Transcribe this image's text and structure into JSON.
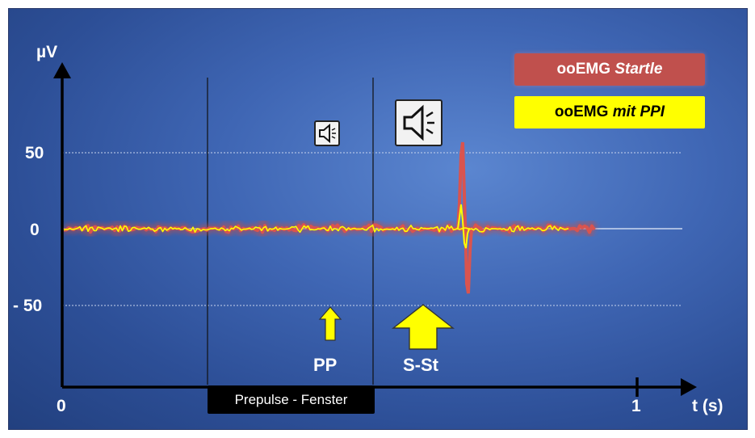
{
  "axes": {
    "y_unit": "µV",
    "x_unit": "t (s)",
    "y_ticks": [
      "50",
      "0",
      "- 50"
    ],
    "x_origin": "0",
    "x_tick_1": "1"
  },
  "legend": {
    "startle": {
      "prefix": "ooEMG",
      "suffix": "Startle",
      "color": "#c0504d"
    },
    "ppi": {
      "prefix": "ooEMG",
      "suffix": "mit PPI",
      "color": "#ffff00"
    }
  },
  "markers": {
    "prepulse_label": "PP",
    "startle_label": "S-St",
    "window_label": "Prepulse - Fenster"
  },
  "icons": {
    "prepulse_speaker": "speaker-quiet-icon",
    "startle_speaker": "speaker-loud-icon"
  },
  "colors": {
    "background": "#3f66b4",
    "trace_startle": "#c0504d",
    "trace_ppi": "#ffff00",
    "arrow": "#ffff00"
  }
}
